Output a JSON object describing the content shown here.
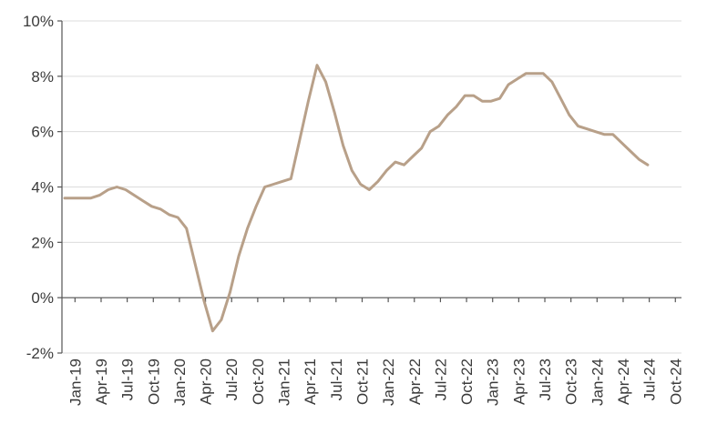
{
  "chart_data": {
    "type": "line",
    "title": "",
    "xlabel": "",
    "ylabel": "",
    "ylim": [
      -2,
      10
    ],
    "y_tick_values": [
      -2,
      0,
      2,
      4,
      6,
      8,
      10
    ],
    "y_tick_labels": [
      "-2%",
      "0%",
      "2%",
      "4%",
      "6%",
      "8%",
      "10%"
    ],
    "x_tick_labels": [
      "Jan-19",
      "Apr-19",
      "Jul-19",
      "Oct-19",
      "Jan-20",
      "Apr-20",
      "Jul-20",
      "Oct-20",
      "Jan-21",
      "Apr-21",
      "Jul-21",
      "Oct-21",
      "Jan-22",
      "Apr-22",
      "Jul-22",
      "Oct-22",
      "Jan-23",
      "Apr-23",
      "Jul-23",
      "Oct-23",
      "Jan-24",
      "Apr-24",
      "Jul-24",
      "Oct-24"
    ],
    "grid": true,
    "legend": "none",
    "colors": {
      "line": "#b8a089",
      "grid": "#dcdcdc",
      "axis": "#555555",
      "text": "#3a3a3a"
    },
    "x": [
      "Jan-19",
      "Feb-19",
      "Mar-19",
      "Apr-19",
      "May-19",
      "Jun-19",
      "Jul-19",
      "Aug-19",
      "Sep-19",
      "Oct-19",
      "Nov-19",
      "Dec-19",
      "Jan-20",
      "Feb-20",
      "Mar-20",
      "Apr-20",
      "May-20",
      "Jun-20",
      "Jul-20",
      "Aug-20",
      "Sep-20",
      "Oct-20",
      "Nov-20",
      "Dec-20",
      "Jan-21",
      "Feb-21",
      "Mar-21",
      "Apr-21",
      "May-21",
      "Jun-21",
      "Jul-21",
      "Aug-21",
      "Sep-21",
      "Oct-21",
      "Nov-21",
      "Dec-21",
      "Jan-22",
      "Feb-22",
      "Mar-22",
      "Apr-22",
      "May-22",
      "Jun-22",
      "Jul-22",
      "Aug-22",
      "Sep-22",
      "Oct-22",
      "Nov-22",
      "Dec-22",
      "Jan-23",
      "Feb-23",
      "Mar-23",
      "Apr-23",
      "May-23",
      "Jun-23",
      "Jul-23",
      "Aug-23",
      "Sep-23",
      "Oct-23",
      "Nov-23",
      "Dec-23",
      "Jan-24",
      "Feb-24",
      "Mar-24",
      "Apr-24",
      "May-24",
      "Jun-24",
      "Jul-24",
      "Aug-24"
    ],
    "series": [
      {
        "values": [
          3.6,
          3.6,
          3.6,
          3.6,
          3.7,
          3.9,
          4.0,
          3.9,
          3.7,
          3.5,
          3.3,
          3.2,
          3.0,
          2.9,
          2.5,
          1.2,
          -0.1,
          -1.2,
          -0.8,
          0.2,
          1.5,
          2.5,
          3.3,
          4.0,
          4.1,
          4.2,
          4.3,
          5.7,
          7.1,
          8.4,
          7.8,
          6.7,
          5.5,
          4.6,
          4.1,
          3.9,
          4.2,
          4.6,
          4.9,
          4.8,
          5.1,
          5.4,
          6.0,
          6.2,
          6.6,
          6.9,
          7.3,
          7.3,
          7.1,
          7.1,
          7.2,
          7.7,
          7.9,
          8.1,
          8.1,
          8.1,
          7.8,
          7.2,
          6.6,
          6.2,
          6.1,
          6.0,
          5.9,
          5.9,
          5.6,
          5.3,
          5.0,
          4.8
        ]
      }
    ]
  }
}
